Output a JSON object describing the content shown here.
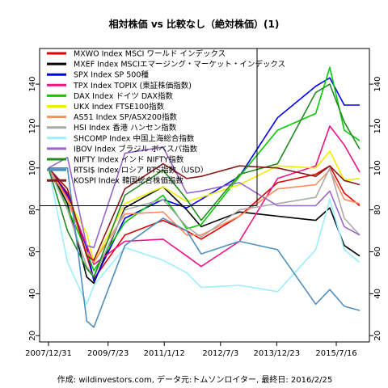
{
  "chart_data": {
    "type": "line",
    "title": "相対株価 vs 比較なし（絶対株価）(1)",
    "footer": "作成: wildinvestors.com, データ元:トムソンロイター, 最終日: 2016/2/25",
    "xlabel": "",
    "ylabel": "",
    "ylim": [
      17,
      157
    ],
    "xlim": [
      "2007/12/31",
      "2016/2/25"
    ],
    "grid": false,
    "legend_position": "top-left",
    "x_ticks": [
      "2007/12/31",
      "2009/7/23",
      "2011/1/12",
      "2012/7/3",
      "2013/12/23",
      "2015/7/16"
    ],
    "y_ticks": [
      20,
      40,
      60,
      80,
      100,
      120,
      140
    ],
    "x": [
      "2007/12/31",
      "2008/6/30",
      "2008/12/31",
      "2009/3/9",
      "2009/12/31",
      "2010/12/31",
      "2011/8/15",
      "2011/12/31",
      "2012/12/31",
      "2013/12/31",
      "2014/12/31",
      "2015/5/15",
      "2015/9/30",
      "2016/2/25"
    ],
    "series": [
      {
        "name": "MXWO Index MSCI ワールド インデックス",
        "color": "#e00000",
        "values": [
          100,
          88,
          58,
          47,
          68,
          75,
          70,
          66,
          77,
          93,
          97,
          101,
          88,
          82
        ]
      },
      {
        "name": "MXEF Index MSCIエマージング・マーケット・インデックス",
        "color": "#000000",
        "values": [
          100,
          83,
          48,
          45,
          81,
          91,
          80,
          72,
          79,
          77,
          75,
          81,
          63,
          58
        ]
      },
      {
        "name": "SPX Index SP 500種",
        "color": "#0000ee",
        "values": [
          100,
          87,
          62,
          46,
          76,
          85,
          81,
          85,
          96,
          124,
          139,
          143,
          130,
          130
        ]
      },
      {
        "name": "TPX Index TOPIX (東証株価指数)",
        "color": "#ee1188",
        "values": [
          100,
          86,
          63,
          54,
          65,
          66,
          58,
          53,
          65,
          95,
          101,
          120,
          111,
          98
        ]
      },
      {
        "name": "DAX Index ドイツ DAX指数",
        "color": "#00cc00",
        "values": [
          100,
          81,
          60,
          51,
          74,
          87,
          71,
          73,
          96,
          118,
          126,
          148,
          118,
          113
        ]
      },
      {
        "name": "UKX Index FTSE100指数",
        "color": "#eeee00",
        "values": [
          100,
          85,
          69,
          55,
          83,
          91,
          84,
          86,
          92,
          101,
          100,
          108,
          94,
          95
        ]
      },
      {
        "name": "AS51 Index SP/ASX200指数",
        "color": "#ff8c5a",
        "values": [
          100,
          85,
          60,
          55,
          78,
          79,
          68,
          68,
          77,
          90,
          92,
          99,
          85,
          83
        ]
      },
      {
        "name": "HSI Index 香港 ハンセン指数",
        "color": "#aaaaaa",
        "values": [
          100,
          80,
          53,
          48,
          80,
          85,
          72,
          67,
          80,
          83,
          86,
          100,
          76,
          68
        ]
      },
      {
        "name": "SHCOMP Index 中国上海総合指数",
        "color": "#99eeff",
        "values": [
          100,
          55,
          35,
          44,
          62,
          56,
          50,
          43,
          44,
          41,
          61,
          85,
          61,
          55
        ]
      },
      {
        "name": "IBOV Index ブラジル ボベスパ指数",
        "color": "#9966cc",
        "values": [
          100,
          105,
          63,
          62,
          107,
          110,
          88,
          89,
          93,
          82,
          82,
          89,
          72,
          68
        ]
      },
      {
        "name": "NIFTY Index インド NIFTY指数",
        "color": "#228b22",
        "values": [
          100,
          70,
          52,
          48,
          87,
          99,
          85,
          75,
          97,
          102,
          136,
          140,
          122,
          109
        ]
      },
      {
        "name": "RTSI$ Index ロシア RTS指数（USD）",
        "color": "#4f8fc0",
        "values": [
          100,
          100,
          27,
          24,
          63,
          76,
          70,
          59,
          65,
          61,
          35,
          42,
          34,
          32
        ]
      },
      {
        "name": "KOSPI Index 韓国総合株価指数",
        "color": "#8b1a1a",
        "values": [
          100,
          90,
          58,
          56,
          90,
          102,
          95,
          96,
          101,
          100,
          96,
          101,
          94,
          92
        ]
      }
    ]
  }
}
